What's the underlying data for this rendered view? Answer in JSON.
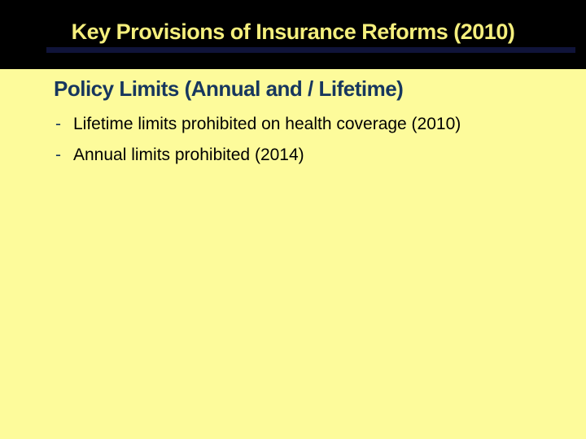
{
  "slide": {
    "title": "Key Provisions of Insurance Reforms (2010)",
    "heading": "Policy Limits (Annual and / Lifetime)",
    "bullets": [
      {
        "marker": "-",
        "text": "Lifetime limits prohibited on health coverage (2010)"
      },
      {
        "marker": "-",
        "text": "Annual limits prohibited (2014)"
      }
    ],
    "colors": {
      "header_background": "#000000",
      "title_text": "#F5EF7D",
      "title_underline": "#10143A",
      "body_background": "#FDFB9B",
      "heading_text": "#17375E",
      "bullet_marker": "#17375E",
      "bullet_text": "#000000"
    }
  }
}
